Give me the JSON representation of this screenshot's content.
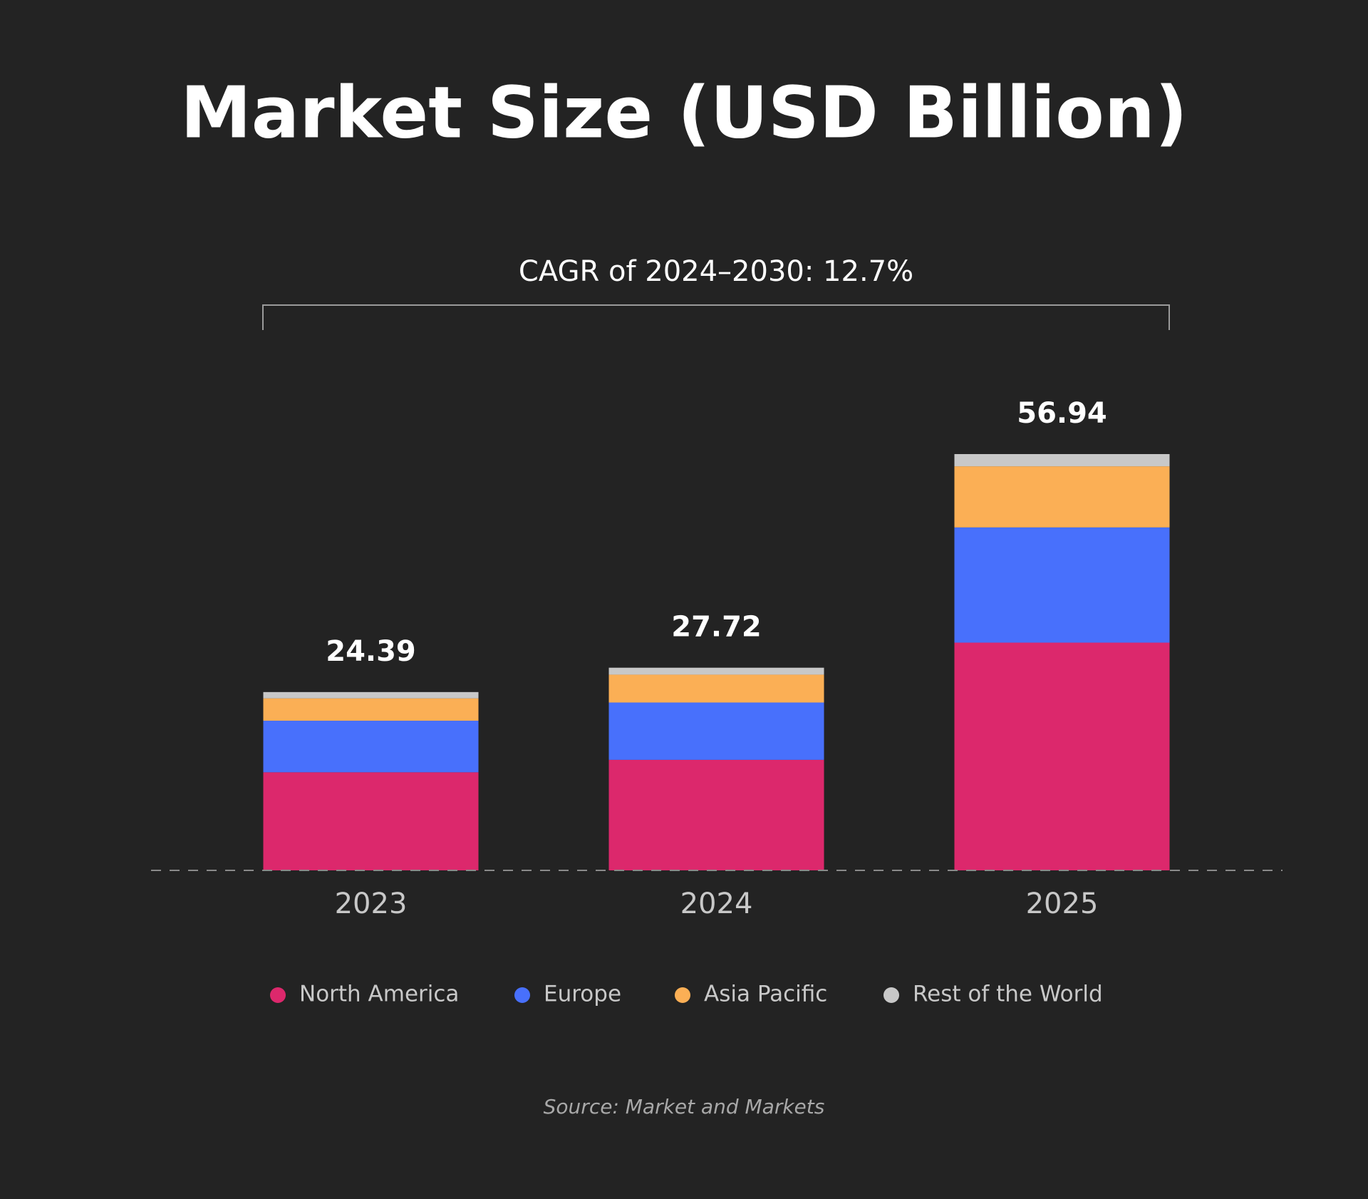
{
  "chart_data": {
    "type": "stacked_bar",
    "title": "Market Size (USD Billion)",
    "annotation": "CAGR of 2024–2030: 12.7%",
    "source": "Source: Market and Markets",
    "categories": [
      "2023",
      "2024",
      "2025"
    ],
    "totals": [
      24.39,
      27.72,
      56.94
    ],
    "series": [
      {
        "name": "North America",
        "color": "#dc286c",
        "values": [
          13.42,
          15.12,
          31.15
        ]
      },
      {
        "name": "Europe",
        "color": "#4870fc",
        "values": [
          7.05,
          7.84,
          15.76
        ]
      },
      {
        "name": "Asia Pacific",
        "color": "#fbaf55",
        "values": [
          3.06,
          3.81,
          8.36
        ]
      },
      {
        "name": "Rest of the World",
        "color": "#c8c8c8",
        "values": [
          0.86,
          0.95,
          1.67
        ]
      }
    ]
  }
}
